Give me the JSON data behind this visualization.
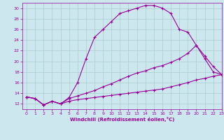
{
  "xlabel": "Windchill (Refroidissement éolien,°C)",
  "bg_color": "#cce8ee",
  "line_color": "#990099",
  "grid_color": "#aacccc",
  "curve1_x": [
    0,
    1,
    2,
    3,
    4,
    5,
    6,
    7,
    8,
    9,
    10,
    11,
    12,
    13,
    14,
    15,
    16,
    17,
    18,
    19,
    20,
    21,
    22,
    23
  ],
  "curve1_y": [
    13.3,
    13.0,
    11.8,
    12.5,
    12.0,
    13.2,
    16.0,
    20.5,
    24.5,
    26.0,
    27.5,
    29.0,
    29.5,
    30.0,
    30.5,
    30.5,
    30.0,
    29.0,
    26.0,
    25.5,
    23.0,
    20.5,
    18.0,
    17.5
  ],
  "curve2_x": [
    0,
    1,
    2,
    3,
    4,
    5,
    6,
    7,
    8,
    9,
    10,
    11,
    12,
    13,
    14,
    15,
    16,
    17,
    18,
    19,
    20,
    21,
    22,
    23
  ],
  "curve2_y": [
    13.3,
    13.0,
    11.8,
    12.5,
    12.0,
    13.0,
    13.5,
    14.0,
    14.5,
    15.2,
    15.8,
    16.5,
    17.2,
    17.8,
    18.2,
    18.8,
    19.2,
    19.8,
    20.5,
    21.5,
    23.0,
    21.0,
    19.0,
    17.5
  ],
  "curve3_x": [
    0,
    1,
    2,
    3,
    4,
    5,
    6,
    7,
    8,
    9,
    10,
    11,
    12,
    13,
    14,
    15,
    16,
    17,
    18,
    19,
    20,
    21,
    22,
    23
  ],
  "curve3_y": [
    13.3,
    13.0,
    11.8,
    12.5,
    12.0,
    12.5,
    12.8,
    13.0,
    13.2,
    13.4,
    13.6,
    13.8,
    14.0,
    14.2,
    14.4,
    14.6,
    14.8,
    15.2,
    15.6,
    16.0,
    16.5,
    16.8,
    17.2,
    17.5
  ],
  "xlim": [
    -0.5,
    23
  ],
  "ylim": [
    11,
    31
  ],
  "yticks": [
    12,
    14,
    16,
    18,
    20,
    22,
    24,
    26,
    28,
    30
  ],
  "xticks": [
    0,
    1,
    2,
    3,
    4,
    5,
    6,
    7,
    8,
    9,
    10,
    11,
    12,
    13,
    14,
    15,
    16,
    17,
    18,
    19,
    20,
    21,
    22,
    23
  ]
}
